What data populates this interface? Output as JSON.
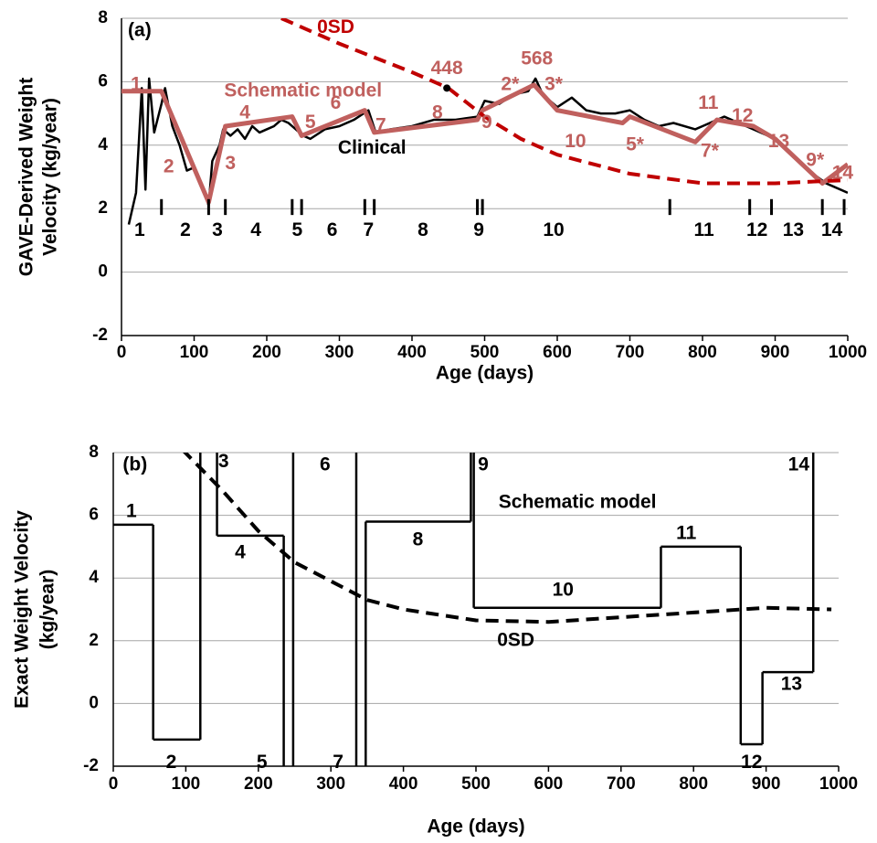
{
  "chart_data": [
    {
      "type": "line",
      "panel": "(a)",
      "xlabel": "Age (days)",
      "ylabel": [
        "GAVE-Derived Weight",
        "Velocity (kg/year)"
      ],
      "xlim": [
        0,
        1000
      ],
      "ylim": [
        -2,
        8
      ],
      "xticks": [
        0,
        100,
        200,
        300,
        400,
        500,
        600,
        700,
        800,
        900,
        1000
      ],
      "yticks": [
        -2,
        0,
        2,
        4,
        6,
        8
      ],
      "grid": true,
      "series": [
        {
          "name": "Clinical",
          "color": "#000000",
          "style": "solid",
          "x": [
            10,
            20,
            28,
            33,
            38,
            45,
            55,
            60,
            70,
            80,
            90,
            100,
            110,
            120,
            125,
            135,
            140,
            150,
            160,
            170,
            180,
            190,
            200,
            210,
            220,
            230,
            240,
            250,
            260,
            280,
            300,
            320,
            340,
            350,
            370,
            400,
            430,
            460,
            490,
            500,
            520,
            540,
            560,
            570,
            580,
            600,
            620,
            640,
            660,
            680,
            700,
            720,
            740,
            760,
            790,
            800,
            830,
            860,
            900,
            940,
            970,
            1000
          ],
          "values": [
            1.5,
            2.5,
            5.8,
            2.6,
            6.1,
            4.4,
            5.3,
            5.8,
            4.6,
            4.0,
            3.2,
            3.3,
            2.8,
            2.1,
            3.5,
            4.0,
            4.5,
            4.3,
            4.5,
            4.2,
            4.6,
            4.4,
            4.5,
            4.6,
            4.8,
            4.7,
            4.5,
            4.3,
            4.2,
            4.5,
            4.6,
            4.8,
            5.1,
            4.4,
            4.5,
            4.6,
            4.8,
            4.8,
            4.9,
            5.4,
            5.3,
            5.6,
            5.7,
            6.1,
            5.6,
            5.2,
            5.5,
            5.1,
            5.0,
            5.0,
            5.1,
            4.8,
            4.6,
            4.7,
            4.5,
            4.6,
            4.9,
            4.6,
            4.2,
            3.3,
            2.8,
            2.5
          ]
        },
        {
          "name": "Schematic model",
          "color": "#c0605e",
          "style": "thick",
          "x": [
            0,
            55,
            120,
            143,
            235,
            248,
            335,
            348,
            490,
            497,
            568,
            600,
            690,
            700,
            790,
            820,
            870,
            900,
            965,
            1000
          ],
          "values": [
            5.7,
            5.7,
            2.2,
            4.6,
            4.9,
            4.3,
            5.1,
            4.4,
            4.8,
            5.1,
            5.9,
            5.1,
            4.7,
            4.9,
            4.1,
            4.8,
            4.6,
            4.2,
            2.8,
            3.4
          ]
        },
        {
          "name": "0SD",
          "color": "#c00000",
          "style": "dashed",
          "x": [
            220,
            300,
            400,
            450,
            500,
            550,
            600,
            700,
            800,
            900,
            1000
          ],
          "values": [
            8,
            7.2,
            6.3,
            5.8,
            4.9,
            4.2,
            3.7,
            3.1,
            2.8,
            2.8,
            2.9
          ]
        }
      ],
      "markers": [
        {
          "x": 448,
          "y": 5.8,
          "label": "448"
        }
      ],
      "boundaries": [
        55,
        120,
        143,
        235,
        248,
        335,
        348,
        490,
        497,
        755,
        865,
        895,
        965,
        995
      ],
      "annotations": [
        {
          "text": "568",
          "color": "#c0605e"
        },
        {
          "text": "1",
          "color": "#c0605e"
        },
        {
          "text": "2",
          "color": "#c0605e"
        },
        {
          "text": "3",
          "color": "#c0605e"
        },
        {
          "text": "4",
          "color": "#c0605e"
        },
        {
          "text": "5",
          "color": "#c0605e"
        },
        {
          "text": "6",
          "color": "#c0605e"
        },
        {
          "text": "7",
          "color": "#c0605e"
        },
        {
          "text": "8",
          "color": "#c0605e"
        },
        {
          "text": "9",
          "color": "#c0605e"
        },
        {
          "text": "2*",
          "color": "#c0605e"
        },
        {
          "text": "3*",
          "color": "#c0605e"
        },
        {
          "text": "10",
          "color": "#c0605e"
        },
        {
          "text": "5*",
          "color": "#c0605e"
        },
        {
          "text": "11",
          "color": "#c0605e"
        },
        {
          "text": "7*",
          "color": "#c0605e"
        },
        {
          "text": "12",
          "color": "#c0605e"
        },
        {
          "text": "13",
          "color": "#c0605e"
        },
        {
          "text": "9*",
          "color": "#c0605e"
        },
        {
          "text": "14",
          "color": "#c0605e"
        }
      ],
      "segment_labels": [
        "1",
        "2",
        "3",
        "4",
        "5",
        "6",
        "7",
        "8",
        "9",
        "10",
        "11",
        "12",
        "13",
        "14"
      ]
    },
    {
      "type": "step",
      "panel": "(b)",
      "xlabel": "Age (days)",
      "ylabel": [
        "Exact Weight Velocity",
        "(kg/year)"
      ],
      "xlim": [
        0,
        1000
      ],
      "ylim": [
        -2,
        8
      ],
      "xticks": [
        0,
        100,
        200,
        300,
        400,
        500,
        600,
        700,
        800,
        900,
        1000
      ],
      "yticks": [
        -2,
        0,
        2,
        4,
        6,
        8
      ],
      "grid": true,
      "series": [
        {
          "name": "Schematic model",
          "color": "#000000",
          "style": "solid",
          "bins": [
            0,
            55,
            120,
            143,
            235,
            248,
            335,
            348,
            493,
            497,
            755,
            865,
            895,
            965,
            1000
          ],
          "values": [
            5.7,
            -1.15,
            10,
            5.35,
            -4,
            9,
            -4,
            5.8,
            9,
            3.05,
            5.0,
            -1.3,
            1.0,
            10
          ]
        },
        {
          "name": "0SD",
          "color": "#000000",
          "style": "dashed",
          "x": [
            95,
            150,
            200,
            250,
            300,
            350,
            400,
            500,
            600,
            700,
            800,
            900,
            990
          ],
          "values": [
            8.1,
            6.8,
            5.5,
            4.5,
            3.9,
            3.3,
            3.0,
            2.65,
            2.6,
            2.75,
            2.9,
            3.05,
            3.0
          ]
        }
      ],
      "segment_labels": [
        "1",
        "2",
        "3",
        "4",
        "5",
        "6",
        "7",
        "8",
        "9",
        "10",
        "11",
        "12",
        "13",
        "14"
      ]
    }
  ]
}
